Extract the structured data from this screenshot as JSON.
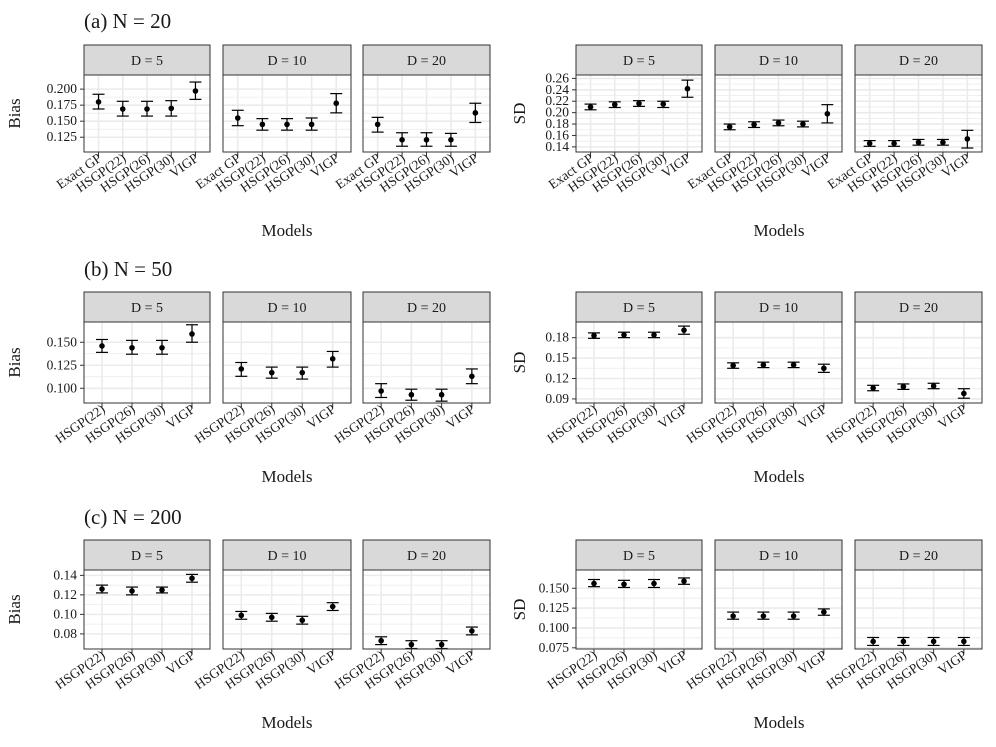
{
  "figure": {
    "background": "#ffffff",
    "panel_background": "#ffffff",
    "strip_fill": "#d9d9d9",
    "border_color": "#333333",
    "grid_color": "#ebebeb",
    "point_color": "#000000"
  },
  "chart_data": [
    {
      "type": "scatter",
      "row": 0,
      "side": "left",
      "title": "(a) N = 20",
      "ylabel": "Bias",
      "xlabel": "Models",
      "facets": [
        "D = 5",
        "D = 10",
        "D = 20"
      ],
      "categories": [
        "Exact GP",
        "HSGP(22)",
        "HSGP(26)",
        "HSGP(30)",
        "VIGP"
      ],
      "ylim": [
        0.102,
        0.222
      ],
      "yticks": [
        0.125,
        0.15,
        0.175,
        0.2
      ],
      "ytick_labels": [
        "0.125",
        "0.150",
        "0.175",
        "0.200"
      ],
      "grid": true,
      "series": [
        {
          "facet": "D = 5",
          "values": [
            0.18,
            0.169,
            0.169,
            0.17,
            0.197
          ],
          "lower": [
            0.169,
            0.158,
            0.158,
            0.158,
            0.184
          ],
          "upper": [
            0.192,
            0.181,
            0.181,
            0.182,
            0.211
          ]
        },
        {
          "facet": "D = 10",
          "values": [
            0.155,
            0.145,
            0.145,
            0.145,
            0.178
          ],
          "lower": [
            0.143,
            0.136,
            0.136,
            0.136,
            0.163
          ],
          "upper": [
            0.167,
            0.154,
            0.154,
            0.155,
            0.193
          ]
        },
        {
          "facet": "D = 20",
          "values": [
            0.145,
            0.121,
            0.121,
            0.121,
            0.163
          ],
          "lower": [
            0.133,
            0.111,
            0.111,
            0.111,
            0.148
          ],
          "upper": [
            0.156,
            0.132,
            0.132,
            0.131,
            0.178
          ]
        }
      ]
    },
    {
      "type": "scatter",
      "row": 0,
      "side": "right",
      "title": "",
      "ylabel": "SD",
      "xlabel": "Models",
      "facets": [
        "D = 5",
        "D = 10",
        "D = 20"
      ],
      "categories": [
        "Exact GP",
        "HSGP(22)",
        "HSGP(26)",
        "HSGP(30)",
        "VIGP"
      ],
      "ylim": [
        0.131,
        0.266
      ],
      "yticks": [
        0.14,
        0.16,
        0.18,
        0.2,
        0.22,
        0.24,
        0.26
      ],
      "ytick_labels": [
        "0.14",
        "0.16",
        "0.18",
        "0.20",
        "0.22",
        "0.24",
        "0.26"
      ],
      "grid": true,
      "series": [
        {
          "facet": "D = 5",
          "values": [
            0.21,
            0.214,
            0.216,
            0.215,
            0.242
          ],
          "lower": [
            0.205,
            0.209,
            0.211,
            0.209,
            0.227
          ],
          "upper": [
            0.215,
            0.219,
            0.221,
            0.22,
            0.257
          ]
        },
        {
          "facet": "D = 10",
          "values": [
            0.175,
            0.179,
            0.182,
            0.18,
            0.198
          ],
          "lower": [
            0.17,
            0.174,
            0.177,
            0.175,
            0.182
          ],
          "upper": [
            0.18,
            0.184,
            0.187,
            0.185,
            0.214
          ]
        },
        {
          "facet": "D = 20",
          "values": [
            0.146,
            0.146,
            0.148,
            0.148,
            0.154
          ],
          "lower": [
            0.141,
            0.141,
            0.143,
            0.143,
            0.138
          ],
          "upper": [
            0.151,
            0.151,
            0.153,
            0.153,
            0.169
          ]
        }
      ]
    },
    {
      "type": "scatter",
      "row": 1,
      "side": "left",
      "title": "(b) N = 50",
      "ylabel": "Bias",
      "xlabel": "Models",
      "facets": [
        "D = 5",
        "D = 10",
        "D = 20"
      ],
      "categories": [
        "HSGP(22)",
        "HSGP(26)",
        "HSGP(30)",
        "VIGP"
      ],
      "ylim": [
        0.084,
        0.172
      ],
      "yticks": [
        0.1,
        0.125,
        0.15
      ],
      "ytick_labels": [
        "0.100",
        "0.125",
        "0.150"
      ],
      "grid": true,
      "series": [
        {
          "facet": "D = 5",
          "values": [
            0.146,
            0.144,
            0.144,
            0.159
          ],
          "lower": [
            0.139,
            0.137,
            0.137,
            0.15
          ],
          "upper": [
            0.153,
            0.152,
            0.152,
            0.169
          ]
        },
        {
          "facet": "D = 10",
          "values": [
            0.121,
            0.117,
            0.117,
            0.132
          ],
          "lower": [
            0.113,
            0.111,
            0.11,
            0.123
          ],
          "upper": [
            0.128,
            0.123,
            0.123,
            0.14
          ]
        },
        {
          "facet": "D = 20",
          "values": [
            0.097,
            0.093,
            0.093,
            0.113
          ],
          "lower": [
            0.09,
            0.087,
            0.086,
            0.105
          ],
          "upper": [
            0.105,
            0.099,
            0.099,
            0.121
          ]
        }
      ]
    },
    {
      "type": "scatter",
      "row": 1,
      "side": "right",
      "title": "",
      "ylabel": "SD",
      "xlabel": "Models",
      "facets": [
        "D = 5",
        "D = 10",
        "D = 20"
      ],
      "categories": [
        "HSGP(22)",
        "HSGP(26)",
        "HSGP(30)",
        "VIGP"
      ],
      "ylim": [
        0.084,
        0.203
      ],
      "yticks": [
        0.09,
        0.12,
        0.15,
        0.18
      ],
      "ytick_labels": [
        "0.09",
        "0.12",
        "0.15",
        "0.18"
      ],
      "grid": true,
      "series": [
        {
          "facet": "D = 5",
          "values": [
            0.183,
            0.184,
            0.184,
            0.191
          ],
          "lower": [
            0.179,
            0.18,
            0.18,
            0.185
          ],
          "upper": [
            0.187,
            0.188,
            0.188,
            0.197
          ]
        },
        {
          "facet": "D = 10",
          "values": [
            0.139,
            0.14,
            0.14,
            0.135
          ],
          "lower": [
            0.135,
            0.136,
            0.136,
            0.129
          ],
          "upper": [
            0.143,
            0.144,
            0.144,
            0.141
          ]
        },
        {
          "facet": "D = 20",
          "values": [
            0.106,
            0.108,
            0.109,
            0.098
          ],
          "lower": [
            0.102,
            0.104,
            0.105,
            0.091
          ],
          "upper": [
            0.11,
            0.112,
            0.113,
            0.105
          ]
        }
      ]
    },
    {
      "type": "scatter",
      "row": 2,
      "side": "left",
      "title": "(c) N = 200",
      "ylabel": "Bias",
      "xlabel": "Models",
      "facets": [
        "D = 5",
        "D = 10",
        "D = 20"
      ],
      "categories": [
        "HSGP(22)",
        "HSGP(26)",
        "HSGP(30)",
        "VIGP"
      ],
      "ylim": [
        0.0645,
        0.1455
      ],
      "yticks": [
        0.08,
        0.1,
        0.12,
        0.14
      ],
      "ytick_labels": [
        "0.08",
        "0.10",
        "0.12",
        "0.14"
      ],
      "grid": true,
      "series": [
        {
          "facet": "D = 5",
          "values": [
            0.126,
            0.124,
            0.125,
            0.137
          ],
          "lower": [
            0.122,
            0.12,
            0.122,
            0.133
          ],
          "upper": [
            0.13,
            0.128,
            0.128,
            0.141
          ]
        },
        {
          "facet": "D = 10",
          "values": [
            0.099,
            0.097,
            0.094,
            0.108
          ],
          "lower": [
            0.095,
            0.093,
            0.09,
            0.104
          ],
          "upper": [
            0.103,
            0.101,
            0.098,
            0.112
          ]
        },
        {
          "facet": "D = 20",
          "values": [
            0.073,
            0.069,
            0.069,
            0.083
          ],
          "lower": [
            0.069,
            0.065,
            0.065,
            0.079
          ],
          "upper": [
            0.077,
            0.073,
            0.073,
            0.087
          ]
        }
      ]
    },
    {
      "type": "scatter",
      "row": 2,
      "side": "right",
      "title": "",
      "ylabel": "SD",
      "xlabel": "Models",
      "facets": [
        "D = 5",
        "D = 10",
        "D = 20"
      ],
      "categories": [
        "HSGP(22)",
        "HSGP(26)",
        "HSGP(30)",
        "VIGP"
      ],
      "ylim": [
        0.0735,
        0.173
      ],
      "yticks": [
        0.075,
        0.1,
        0.125,
        0.15
      ],
      "ytick_labels": [
        "0.075",
        "0.100",
        "0.125",
        "0.150"
      ],
      "grid": true,
      "series": [
        {
          "facet": "D = 5",
          "values": [
            0.156,
            0.155,
            0.156,
            0.159
          ],
          "lower": [
            0.152,
            0.151,
            0.151,
            0.155
          ],
          "upper": [
            0.161,
            0.16,
            0.161,
            0.163
          ]
        },
        {
          "facet": "D = 10",
          "values": [
            0.115,
            0.115,
            0.115,
            0.12
          ],
          "lower": [
            0.111,
            0.111,
            0.111,
            0.116
          ],
          "upper": [
            0.12,
            0.12,
            0.12,
            0.124
          ]
        },
        {
          "facet": "D = 20",
          "values": [
            0.083,
            0.083,
            0.083,
            0.083
          ],
          "lower": [
            0.078,
            0.078,
            0.078,
            0.078
          ],
          "upper": [
            0.088,
            0.088,
            0.088,
            0.088
          ]
        }
      ]
    }
  ]
}
